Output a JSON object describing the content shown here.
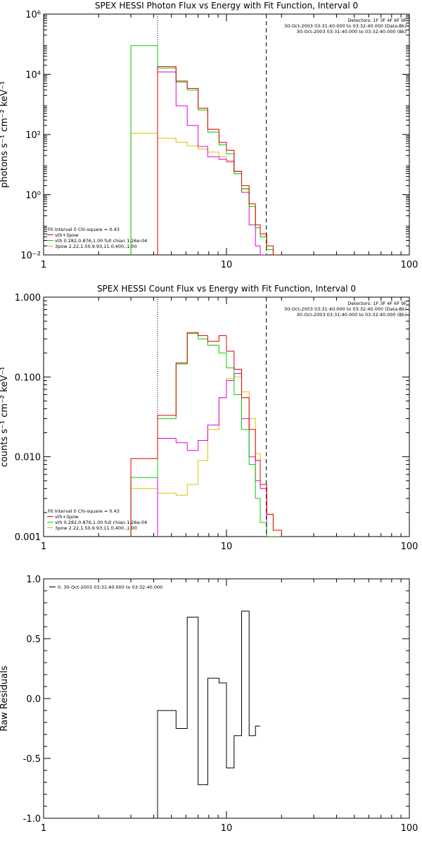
{
  "colors": {
    "black": "#000000",
    "red": "#e00000",
    "green": "#00d000",
    "magenta": "#e000e0",
    "yellow": "#e0c000"
  },
  "chart_data": [
    {
      "type": "line",
      "title": "SPEX HESSI Photon Flux vs Energy with Fit Function, Interval 0",
      "ylabel": "photons s⁻¹ cm⁻² keV⁻¹",
      "xlabel": "",
      "xscale": "log",
      "yscale": "log",
      "xlim": [
        1,
        100
      ],
      "ylim": [
        0.01,
        1000000
      ],
      "xticks": [
        "1",
        "10",
        "100"
      ],
      "yticks": [
        "10⁻²",
        "10⁰",
        "10²",
        "10⁴",
        "10⁶"
      ],
      "yticks_note": "tick exponents rendered as printed",
      "ytick_labels": [
        "10⁻²",
        "10⁰",
        "10²",
        "10⁴",
        "10⁶"
      ],
      "vlines": [
        {
          "x": 4.2,
          "style": "dotted"
        },
        {
          "x": 16.5,
          "style": "dashed"
        }
      ],
      "header_lines": [
        "Detectors: 1F 3F 4F 6F 9F",
        "30-Oct-2003 03:31:40.000 to 03:32:40.000 (Data-Bk)",
        "30-Oct-2003 03:31:40.000 to 03:32:40.000 (Bk)"
      ],
      "legend_lines": [
        "Fit Interval 0   Chi-square = 0.43",
        "vth+3pow",
        "vth 0.282,0.876,1.00  full chian 1.26e-04",
        "3pow 2.22,1.50,9.93,11.0,400.,1.00"
      ],
      "series": [
        {
          "name": "vth+3pow",
          "color": "red",
          "edges": [
            3.0,
            4.2,
            5.3,
            6.1,
            7.0,
            7.9,
            9.1,
            10.0,
            11.0,
            12.1,
            13.3,
            14.4,
            15.3,
            16.6,
            18.0,
            20.0
          ],
          "values": [
            null,
            18000,
            6000,
            3400,
            750,
            150,
            55,
            30,
            6,
            2,
            0.5,
            0.1,
            0.05,
            0.02,
            0.01
          ]
        },
        {
          "name": "vth 0.282,0.876,1.00  full chian 1.26e-04",
          "color": "green",
          "edges": [
            3.0,
            4.2,
            5.3,
            6.1,
            7.0,
            7.9,
            9.1,
            10.0,
            11.0,
            12.1,
            13.3,
            14.4,
            15.3,
            16.6,
            18.0,
            20.0
          ],
          "values": [
            90000,
            16000,
            5500,
            3000,
            650,
            120,
            45,
            23,
            5,
            1.6,
            0.4,
            0.08,
            0.04,
            0.015,
            0.01
          ]
        },
        {
          "name": "3pow 2.22,1.50,9.93,11.0,400.,1.00",
          "color": "yellow",
          "edges": [
            3.0,
            4.2,
            5.3,
            6.1,
            7.0,
            7.9,
            9.1,
            10.0,
            11.0,
            12.1,
            13.3,
            14.4,
            15.3,
            16.6,
            18.0,
            20.0
          ],
          "values": [
            110,
            75,
            55,
            42,
            33,
            26,
            18,
            12,
            5,
            1.5,
            0.4,
            0.08,
            0.04,
            0.015,
            0.01
          ]
        },
        {
          "name": "Bk",
          "color": "magenta",
          "edges": [
            4.2,
            5.3,
            6.1,
            7.0,
            7.9,
            9.1,
            10.0,
            11.0,
            12.1,
            13.3,
            14.4,
            15.3,
            16.6
          ],
          "values": [
            12000,
            900,
            200,
            40,
            18,
            15,
            13,
            6,
            1.2,
            0.1,
            0.02,
            0.01
          ]
        }
      ]
    },
    {
      "type": "line",
      "title": "SPEX HESSI Count Flux vs Energy with Fit Function, Interval 0",
      "ylabel": "counts s⁻¹ cm⁻² keV⁻¹",
      "xlabel": "",
      "xscale": "log",
      "yscale": "log",
      "xlim": [
        1,
        100
      ],
      "ylim": [
        0.001,
        1.0
      ],
      "xticks": [
        "1",
        "10",
        "100"
      ],
      "yticks": [
        "0.001",
        "0.010",
        "0.100",
        "1.000"
      ],
      "vlines": [
        {
          "x": 4.2,
          "style": "dotted"
        },
        {
          "x": 16.5,
          "style": "dashed"
        }
      ],
      "header_lines": [
        "Detectors: 1F 3F 4F 6F 9F",
        "30-Oct-2003 03:31:40.000 to 03:32:40.000 (Data-Bk)",
        "30-Oct-2003 03:31:40.000 to 03:32:40.000 (Bk)"
      ],
      "legend_lines": [
        "Fit Interval 0   Chi-square = 0.43",
        "vth+3pow",
        "vth 0.282,0.876,1.00  full chian 1.26e-04",
        "3pow 2.22,1.50,9.93,11.0,400.,1.00"
      ],
      "series": [
        {
          "name": "vth+3pow",
          "color": "red",
          "edges": [
            3.0,
            4.2,
            5.3,
            6.1,
            7.0,
            7.9,
            9.1,
            10.0,
            11.0,
            12.1,
            13.3,
            14.4,
            15.3,
            16.6,
            18.0,
            20.0
          ],
          "values": [
            0.0095,
            0.033,
            0.15,
            0.36,
            0.33,
            0.28,
            0.33,
            0.21,
            0.125,
            0.055,
            0.022,
            0.009,
            0.0045,
            0.0019,
            0.0012
          ]
        },
        {
          "name": "vth 0.282,0.876,1.00  full chian 1.26e-04",
          "color": "green",
          "edges": [
            3.0,
            4.2,
            5.3,
            6.1,
            7.0,
            7.9,
            9.1,
            10.0,
            11.0,
            12.1,
            13.3,
            14.4,
            15.3,
            16.6,
            18.0,
            20.0
          ],
          "values": [
            0.0055,
            0.03,
            0.145,
            0.35,
            0.3,
            0.25,
            0.2,
            0.13,
            0.06,
            0.022,
            0.008,
            0.003,
            0.0015,
            0.001,
            0.001
          ]
        },
        {
          "name": "3pow 2.22,1.50,9.93,11.0,400.,1.00",
          "color": "yellow",
          "edges": [
            3.0,
            4.2,
            5.3,
            6.1,
            7.0,
            7.9,
            9.1,
            10.0,
            11.0,
            12.1,
            13.3,
            14.4,
            15.3,
            16.6,
            18.0,
            20.0
          ],
          "values": [
            0.004,
            0.0035,
            0.0033,
            0.0045,
            0.009,
            0.022,
            0.055,
            0.095,
            0.1,
            0.065,
            0.03,
            0.011,
            0.0045,
            0.0019,
            0.0012
          ]
        },
        {
          "name": "Bk",
          "color": "magenta",
          "edges": [
            4.2,
            5.3,
            6.1,
            7.0,
            7.9,
            9.1,
            10.0,
            11.0,
            12.1,
            13.3,
            14.4,
            15.3,
            16.6
          ],
          "values": [
            0.017,
            0.015,
            0.012,
            0.016,
            0.025,
            0.055,
            0.09,
            0.11,
            0.03,
            0.01,
            0.005,
            0.004
          ]
        }
      ]
    },
    {
      "type": "line",
      "title": "",
      "ylabel": "Raw Residuals",
      "xlabel": "",
      "xscale": "log",
      "yscale": "linear",
      "xlim": [
        1,
        100
      ],
      "ylim": [
        -1.0,
        1.0
      ],
      "xticks": [
        "1",
        "10",
        "100"
      ],
      "yticks": [
        "-1.0",
        "-0.5",
        "0.0",
        "0.5",
        "1.0"
      ],
      "legend_lines": [
        "0. 30-Oct-2003 03:31:40.000 to 03:32:40.000"
      ],
      "series": [
        {
          "name": "0. 30-Oct-2003 03:31:40.000 to 03:32:40.000",
          "color": "black",
          "edges": [
            4.2,
            5.3,
            6.1,
            7.0,
            7.9,
            9.1,
            10.0,
            11.0,
            12.1,
            13.3,
            14.4,
            15.3,
            16.6
          ],
          "values": [
            -0.1,
            -0.25,
            0.68,
            -0.72,
            0.17,
            0.13,
            -0.58,
            -0.31,
            0.73,
            -0.31,
            -0.23,
            null
          ]
        }
      ]
    }
  ]
}
